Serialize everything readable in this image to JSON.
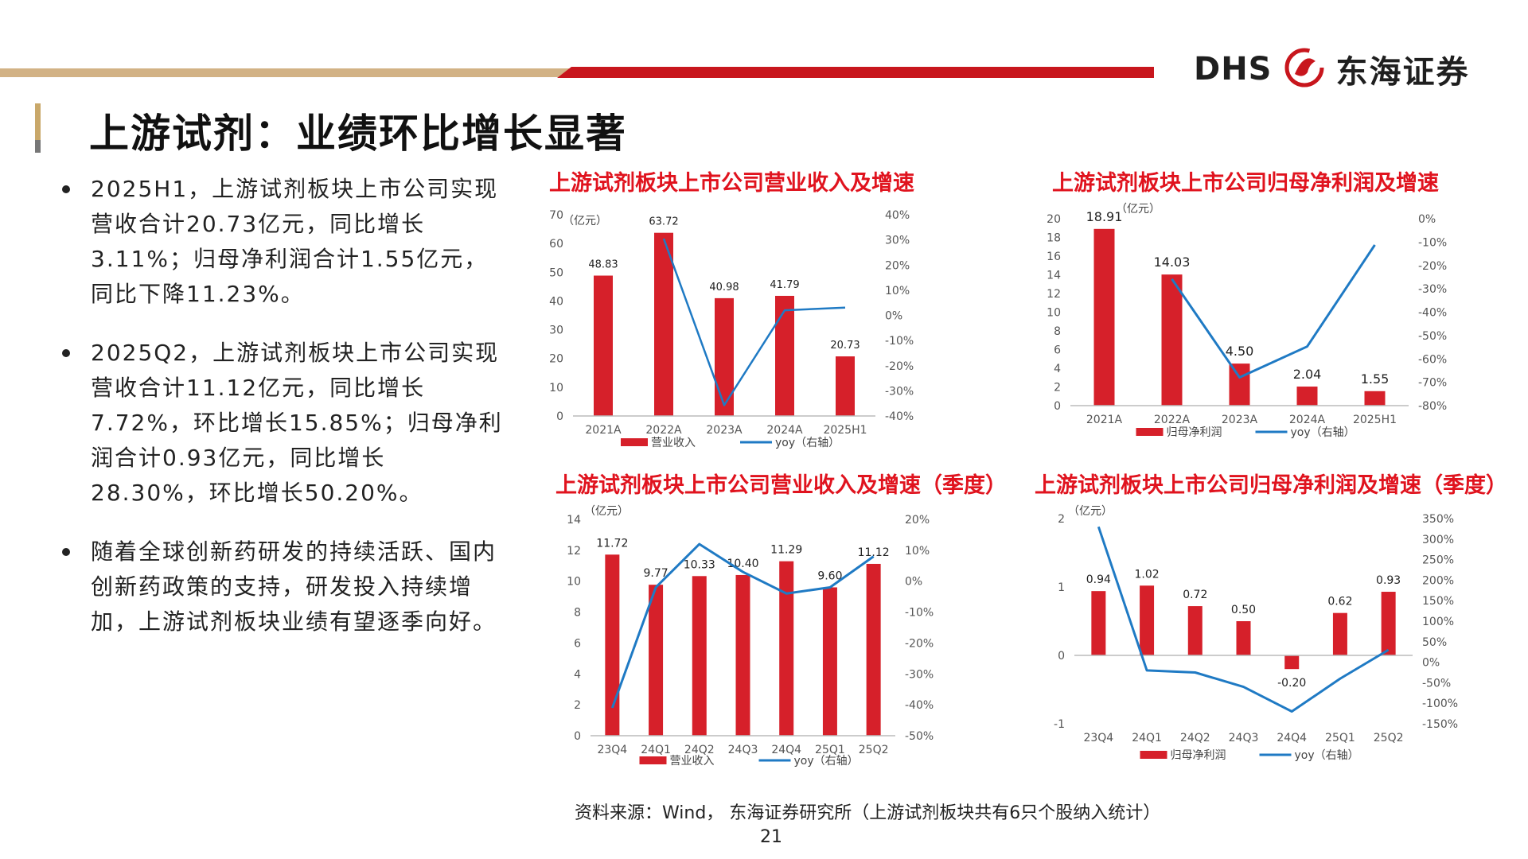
{
  "header": {
    "logo_dhs": "DHS",
    "logo_name": "东海证券"
  },
  "page": {
    "title": "上游试剂：业绩环比增长显著",
    "bullets": [
      "2025H1，上游试剂板块上市公司实现营收合计20.73亿元，同比增长3.11%；归母净利润合计1.55亿元，同比下降11.23%。",
      "2025Q2，上游试剂板块上市公司实现营收合计11.12亿元，同比增长7.72%，环比增长15.85%；归母净利润合计0.93亿元，同比增长28.30%，环比增长50.20%。",
      "随着全球创新药研发的持续活跃、国内创新药政策的支持，研发投入持续增加，上游试剂板块业绩有望逐季向好。"
    ],
    "source": "资料来源：Wind， 东海证券研究所（上游试剂板块共有6只个股纳入统计）",
    "page_number": "21"
  },
  "colors": {
    "bar": "#d6202a",
    "line": "#1f7ac4",
    "title_red": "#e0131e",
    "gold": "#d2b285"
  },
  "chart_data": [
    {
      "type": "bar",
      "title": "上游试剂板块上市公司营业收入及增速",
      "unit": "（亿元）",
      "categories": [
        "2021A",
        "2022A",
        "2023A",
        "2024A",
        "2025H1"
      ],
      "series": [
        {
          "name": "营业收入",
          "values": [
            48.83,
            63.72,
            40.98,
            41.79,
            20.73
          ],
          "labels": [
            "48.83",
            "63.72",
            "40.98",
            "41.79",
            "20.73"
          ]
        },
        {
          "name": "yoy（右轴）",
          "type": "line",
          "axis": "right",
          "values": [
            null,
            30.5,
            -35.7,
            2.0,
            3.1
          ]
        }
      ],
      "ylim": [
        0,
        70
      ],
      "yticks": [
        0,
        10,
        20,
        30,
        40,
        50,
        60,
        70
      ],
      "y2lim": [
        -40,
        40
      ],
      "y2ticks": [
        "-40%",
        "-30%",
        "-20%",
        "-10%",
        "0%",
        "10%",
        "20%",
        "30%",
        "40%"
      ]
    },
    {
      "type": "bar",
      "title": "上游试剂板块上市公司归母净利润及增速",
      "unit": "（亿元）",
      "categories": [
        "2021A",
        "2022A",
        "2023A",
        "2024A",
        "2025H1"
      ],
      "series": [
        {
          "name": "归母净利润",
          "values": [
            18.91,
            14.03,
            4.5,
            2.04,
            1.55
          ],
          "labels": [
            "18.91",
            "14.03",
            "4.50",
            "2.04",
            "1.55"
          ]
        },
        {
          "name": "yoy（右轴）",
          "type": "line",
          "axis": "right",
          "values": [
            null,
            -25.8,
            -67.9,
            -54.7,
            -11.2
          ]
        }
      ],
      "ylim": [
        0,
        20
      ],
      "yticks": [
        0,
        2,
        4,
        6,
        8,
        10,
        12,
        14,
        16,
        18,
        20
      ],
      "y2lim": [
        -80,
        0
      ],
      "y2ticks": [
        "-80%",
        "-70%",
        "-60%",
        "-50%",
        "-40%",
        "-30%",
        "-20%",
        "-10%",
        "0%"
      ]
    },
    {
      "type": "bar",
      "title": "上游试剂板块上市公司营业收入及增速（季度）",
      "unit": "（亿元）",
      "categories": [
        "23Q4",
        "24Q1",
        "24Q2",
        "24Q3",
        "24Q4",
        "25Q1",
        "25Q2"
      ],
      "series": [
        {
          "name": "营业收入",
          "values": [
            11.72,
            9.77,
            10.33,
            10.4,
            11.29,
            9.6,
            11.12
          ],
          "labels": [
            "11.72",
            "9.77",
            "10.33",
            "10.40",
            "11.29",
            "9.60",
            "11.12"
          ]
        },
        {
          "name": "yoy（右轴）",
          "type": "line",
          "axis": "right",
          "values": [
            -41,
            -2,
            12,
            3,
            -4,
            -2,
            8
          ]
        }
      ],
      "ylim": [
        0,
        14
      ],
      "yticks": [
        0,
        2,
        4,
        6,
        8,
        10,
        12,
        14
      ],
      "y2lim": [
        -50,
        20
      ],
      "y2ticks": [
        "-50%",
        "-40%",
        "-30%",
        "-20%",
        "-10%",
        "0%",
        "10%",
        "20%"
      ]
    },
    {
      "type": "bar",
      "title": "上游试剂板块上市公司归母净利润及增速（季度）",
      "unit": "（亿元）",
      "categories": [
        "23Q4",
        "24Q1",
        "24Q2",
        "24Q3",
        "24Q4",
        "25Q1",
        "25Q2"
      ],
      "series": [
        {
          "name": "归母净利润",
          "values": [
            0.94,
            1.02,
            0.72,
            0.5,
            -0.2,
            0.62,
            0.93
          ],
          "labels": [
            "0.94",
            "1.02",
            "0.72",
            "0.50",
            "-0.20",
            "0.62",
            "0.93"
          ]
        },
        {
          "name": "yoy（右轴）",
          "type": "line",
          "axis": "right",
          "values": [
            330,
            -20,
            -25,
            -60,
            -120,
            -40,
            30
          ]
        }
      ],
      "ylim": [
        -1,
        2
      ],
      "yticks": [
        -1,
        0,
        1,
        2
      ],
      "y2lim": [
        -150,
        350
      ],
      "y2ticks": [
        "-150%",
        "-100%",
        "-50%",
        "0%",
        "50%",
        "100%",
        "150%",
        "200%",
        "250%",
        "300%",
        "350%"
      ]
    }
  ]
}
